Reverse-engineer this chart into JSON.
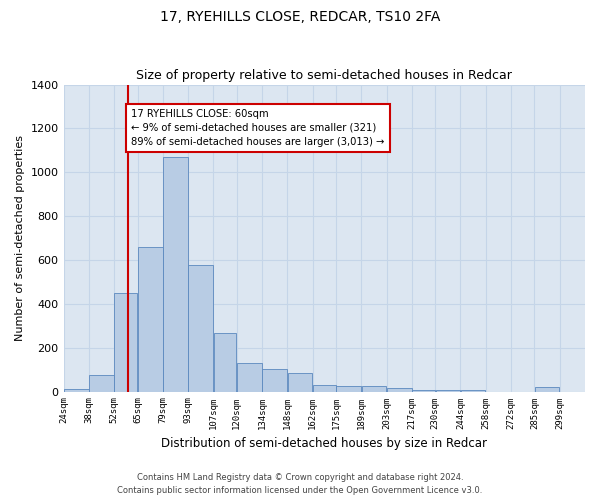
{
  "title": "17, RYEHILLS CLOSE, REDCAR, TS10 2FA",
  "subtitle": "Size of property relative to semi-detached houses in Redcar",
  "xlabel": "Distribution of semi-detached houses by size in Redcar",
  "ylabel": "Number of semi-detached properties",
  "footer_line1": "Contains HM Land Registry data © Crown copyright and database right 2024.",
  "footer_line2": "Contains public sector information licensed under the Open Government Licence v3.0.",
  "bin_edges": [
    24,
    38,
    52,
    65,
    79,
    93,
    107,
    120,
    134,
    148,
    162,
    175,
    189,
    203,
    217,
    230,
    244,
    258,
    272,
    285,
    299
  ],
  "bin_labels": [
    "24sqm",
    "38sqm",
    "52sqm",
    "65sqm",
    "79sqm",
    "93sqm",
    "107sqm",
    "120sqm",
    "134sqm",
    "148sqm",
    "162sqm",
    "175sqm",
    "189sqm",
    "203sqm",
    "217sqm",
    "230sqm",
    "244sqm",
    "258sqm",
    "272sqm",
    "285sqm",
    "299sqm"
  ],
  "values": [
    10,
    75,
    450,
    660,
    1070,
    575,
    265,
    130,
    105,
    85,
    30,
    25,
    25,
    15,
    5,
    5,
    5,
    0,
    0,
    20
  ],
  "bar_color": "#b8cce4",
  "bar_edge_color": "#5b88be",
  "grid_color": "#c5d5e8",
  "bg_color": "#dce6f1",
  "property_size": 60,
  "property_label": "17 RYEHILLS CLOSE: 60sqm",
  "pct_smaller": 9,
  "n_smaller": 321,
  "pct_larger": 89,
  "n_larger": "3,013",
  "vline_color": "#cc0000",
  "annotation_box_edge": "#cc0000",
  "ylim": [
    0,
    1400
  ],
  "yticks": [
    0,
    200,
    400,
    600,
    800,
    1000,
    1200,
    1400
  ]
}
